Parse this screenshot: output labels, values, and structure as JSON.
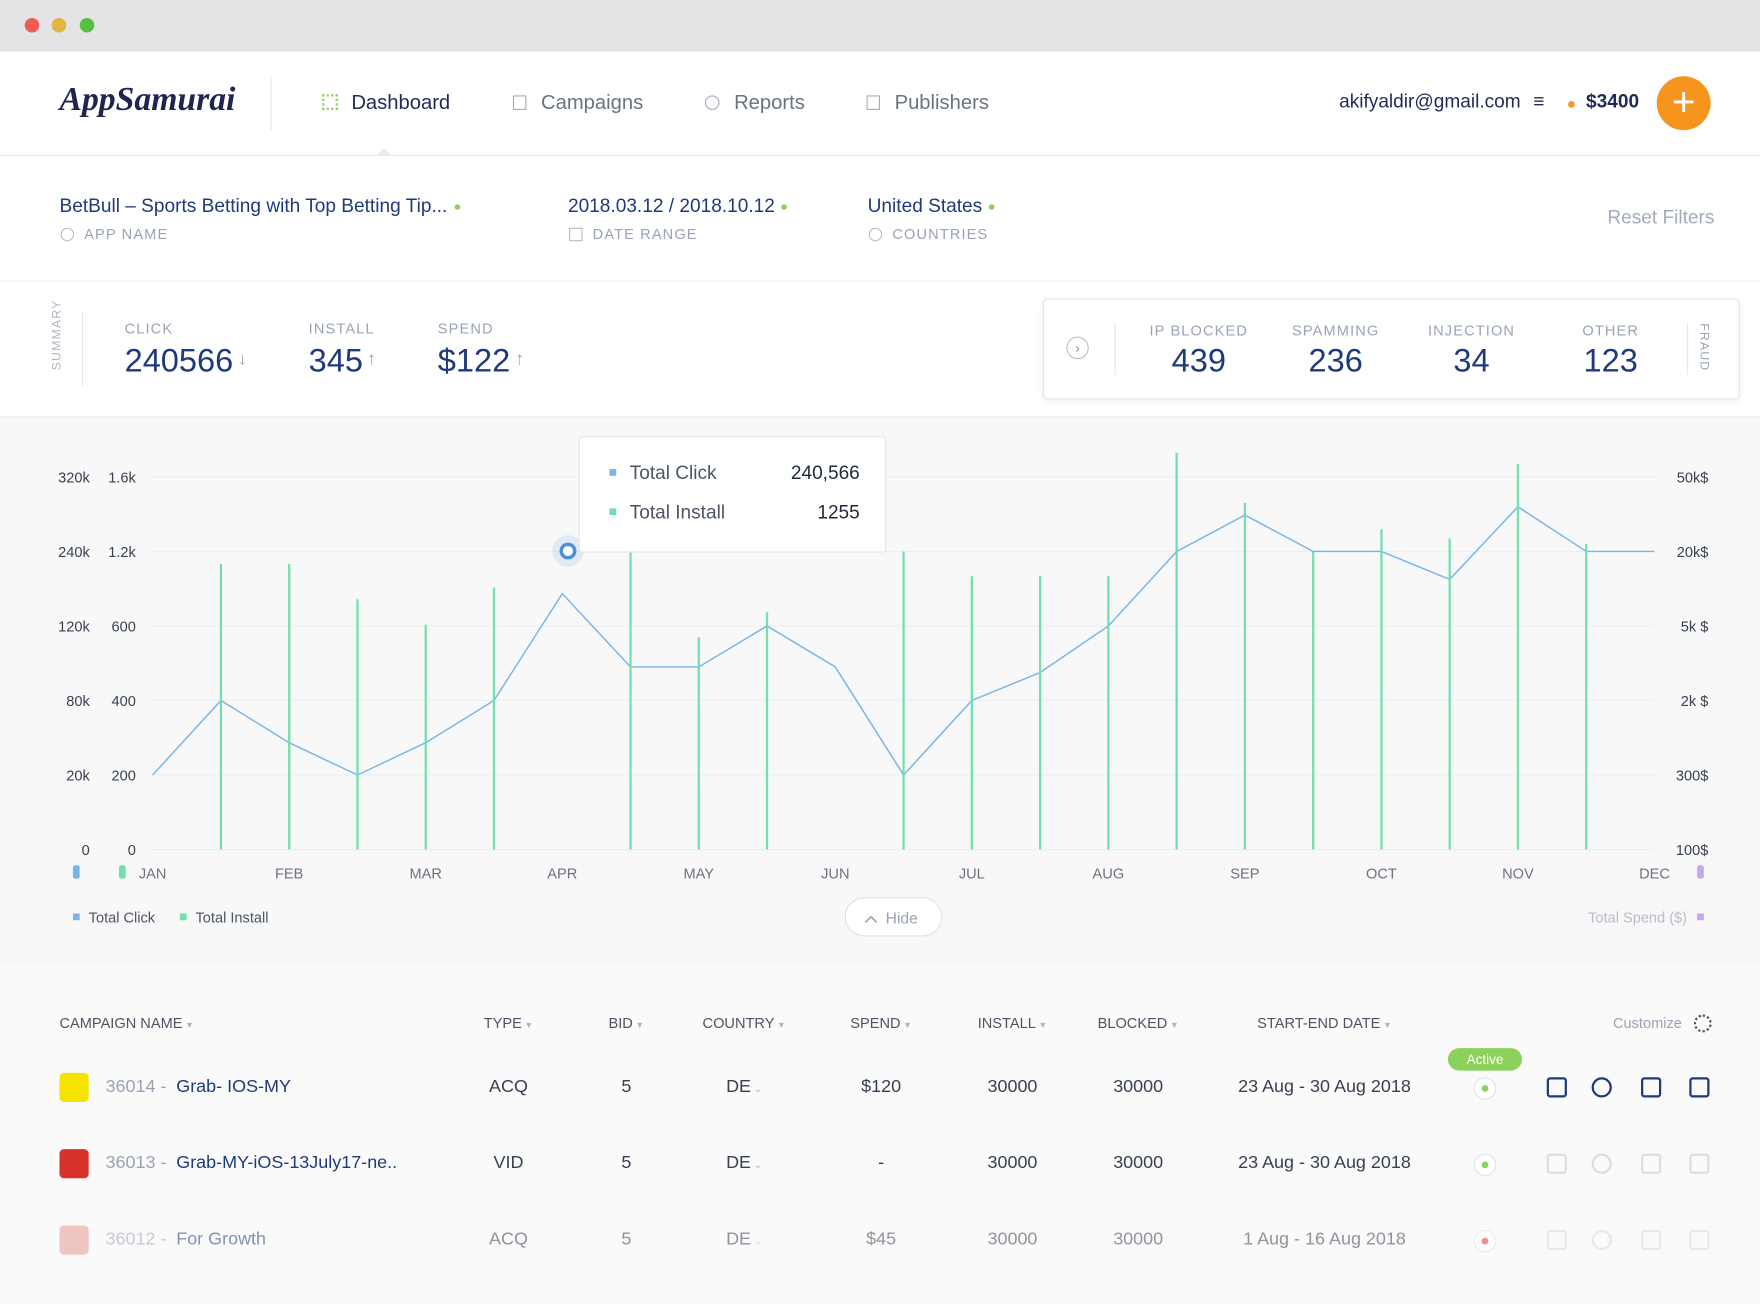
{
  "header": {
    "logo": "AppSamurai",
    "nav": [
      "Dashboard",
      "Campaigns",
      "Reports",
      "Publishers"
    ],
    "email": "akifyaldir@gmail.com",
    "balance": "$3400"
  },
  "filters": [
    {
      "value": "BetBull – Sports Betting with Top Betting Tip...",
      "label": "APP NAME"
    },
    {
      "value": "2018.03.12 / 2018.10.12",
      "label": "DATE RANGE"
    },
    {
      "value": "United States",
      "label": "COUNTRIES"
    }
  ],
  "reset": "Reset Filters",
  "summary": {
    "title": "SUMMARY",
    "items": [
      {
        "label": "CLICK",
        "value": "240566"
      },
      {
        "label": "INSTALL",
        "value": "345"
      },
      {
        "label": "SPEND",
        "value": "$122"
      }
    ]
  },
  "fraud": {
    "title": "FRAUD",
    "items": [
      {
        "label": "IP BLOCKED",
        "value": "439"
      },
      {
        "label": "SPAMMING",
        "value": "236"
      },
      {
        "label": "INJECTION",
        "value": "34"
      },
      {
        "label": "OTHER",
        "value": "123"
      }
    ]
  },
  "chart_data": {
    "type": "line",
    "categories": [
      "JAN",
      null,
      "FEB",
      null,
      "MAR",
      null,
      "APR",
      null,
      "MAY",
      null,
      "JUN",
      null,
      "JUL",
      null,
      "AUG",
      null,
      "SEP",
      null,
      "OCT",
      null,
      "NOV",
      null,
      "DEC"
    ],
    "series": [
      {
        "name": "Total Click",
        "color": "#79b4e8",
        "type": "line",
        "axis": "y",
        "values": [
          20000,
          80000,
          46000,
          20000,
          46000,
          80000,
          172000,
          98000,
          98000,
          120000,
          98000,
          20000,
          80000,
          95000,
          120000,
          240000,
          279000,
          240000,
          240000,
          195000,
          288000,
          240000,
          240000
        ]
      },
      {
        "name": "Total Install",
        "color": "#72e0aa",
        "type": "bar",
        "axis": "y2",
        "values": [
          null,
          1100,
          1100,
          815,
          610,
          910,
          null,
          1250,
          570,
          710,
          null,
          1200,
          1000,
          1000,
          1000,
          1730,
          1460,
          1200,
          1320,
          1270,
          1670,
          1240,
          null
        ]
      }
    ],
    "ylim": [
      0,
      350000
    ],
    "yticks": [
      0,
      {
        "value": 20000,
        "label": "20k"
      },
      {
        "value": 80000,
        "label": "80k"
      },
      {
        "value": 120000,
        "label": "120k"
      },
      {
        "value": 240000,
        "label": "240k"
      },
      {
        "value": 320000,
        "label": "320k"
      }
    ],
    "y2lim": [
      0,
      1750
    ],
    "y2ticks": [
      0,
      200,
      400,
      600,
      {
        "value": 1200,
        "label": "1.2k"
      },
      {
        "value": 1600,
        "label": "1.6k"
      }
    ],
    "y3lim": [
      100,
      61000
    ],
    "y3ticks": [
      {
        "value": 100,
        "label": "100$"
      },
      {
        "value": 300,
        "label": "300$"
      },
      {
        "value": 2000,
        "label": "2k $"
      },
      {
        "value": 5000,
        "label": "5k $"
      },
      {
        "value": 20000,
        "label": "20k$"
      },
      {
        "value": 50000,
        "label": "50k$"
      }
    ],
    "y3_name": "Total Spend ($)",
    "y3_color": "#c9a6f2",
    "grid": true,
    "tooltip": [
      {
        "label": "Total Click",
        "value": "240,566"
      },
      {
        "label": "Total Install",
        "value": "1255"
      }
    ],
    "hide": "Hide"
  },
  "table": {
    "columns": [
      "CAMPAIGN NAME",
      "TYPE",
      "BID",
      "COUNTRY",
      "SPEND",
      "INSTALL",
      "BLOCKED",
      "START-END DATE"
    ],
    "customize": "Customize",
    "active": "Active",
    "rows": [
      [
        "36014",
        "Grab- IOS-MY",
        "ACQ",
        "5",
        "DE",
        "$120",
        "30000",
        "30000",
        "23 Aug - 30 Aug 2018"
      ],
      [
        "36013",
        "Grab-MY-iOS-13July17-ne..",
        "VID",
        "5",
        "DE",
        "-",
        "30000",
        "30000",
        "23 Aug - 30 Aug 2018"
      ],
      [
        "36012",
        "For Growth",
        "ACQ",
        "5",
        "DE",
        "$45",
        "30000",
        "30000",
        "1 Aug - 16 Aug 2018"
      ]
    ]
  }
}
